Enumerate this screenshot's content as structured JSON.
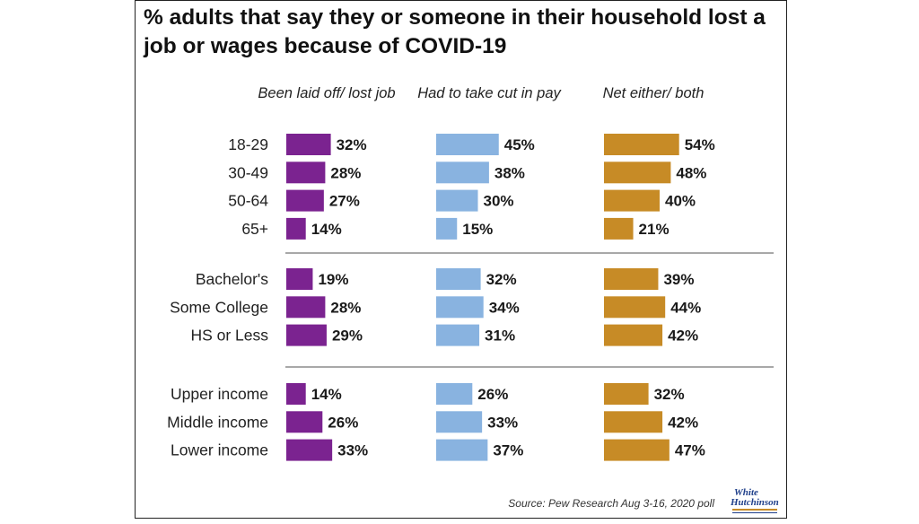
{
  "title": "% adults that say they or someone in their household lost a job or wages because of COVID-19",
  "columns": [
    {
      "label": "Been laid off/ lost job"
    },
    {
      "label": "Had to take cut in pay"
    },
    {
      "label": "Net either/ both"
    }
  ],
  "colors": {
    "series": [
      "#7b2390",
      "#89b3e0",
      "#c78b26"
    ],
    "divider": "#a8a8a8"
  },
  "source": "Source: Pew Research Aug 3-16, 2020 poll",
  "logo": {
    "line1": "White",
    "line2": "Hutchinson"
  },
  "chart_data": {
    "type": "bar",
    "orientation": "horizontal",
    "value_format": "percent",
    "series": [
      {
        "name": "Been laid off/ lost job"
      },
      {
        "name": "Had to take cut in pay"
      },
      {
        "name": "Net either/ both"
      }
    ],
    "groups": [
      {
        "categories": [
          "18-29",
          "30-49",
          "50-64",
          "65+"
        ],
        "values": [
          [
            32,
            28,
            27,
            14
          ],
          [
            45,
            38,
            30,
            15
          ],
          [
            54,
            48,
            40,
            21
          ]
        ]
      },
      {
        "categories": [
          "Bachelor's",
          "Some College",
          "HS or Less"
        ],
        "values": [
          [
            19,
            28,
            29
          ],
          [
            32,
            34,
            31
          ],
          [
            39,
            44,
            42
          ]
        ]
      },
      {
        "categories": [
          "Upper income",
          "Middle income",
          "Lower income"
        ],
        "values": [
          [
            14,
            26,
            33
          ],
          [
            26,
            33,
            37
          ],
          [
            32,
            42,
            47
          ]
        ]
      }
    ]
  }
}
